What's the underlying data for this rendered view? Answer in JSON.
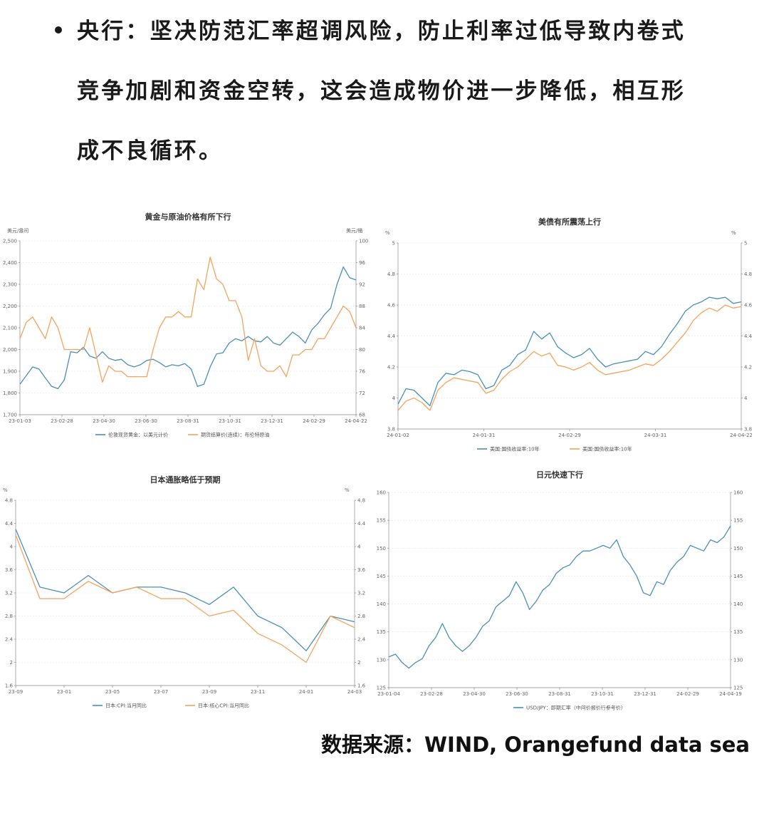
{
  "text": {
    "lines": [
      "央行：坚决防范汇率超调风险，防止利率过低导致内卷式",
      "竞争加剧和资金空转，这会造成物价进一步降低，相互形",
      "成不良循环。"
    ]
  },
  "source_note": "数据来源：WIND, Orangefund data sea",
  "colors": {
    "blue": "#4a90b8",
    "orange": "#f5a35c"
  },
  "chart_data": [
    {
      "type": "line",
      "title": "黄金与原油价格有所下行",
      "ylabel_left": "美元/盎司",
      "ylabel_right": "美元/桶",
      "ylim_left": [
        1700,
        2500
      ],
      "ylim_right": [
        68,
        100
      ],
      "yticks_left": [
        "1,700",
        "1,800",
        "1,900",
        "2,000",
        "2,100",
        "2,200",
        "2,300",
        "2,400",
        "2,500"
      ],
      "yticks_right": [
        "68",
        "72",
        "76",
        "80",
        "84",
        "88",
        "92",
        "96",
        "100"
      ],
      "x_labels": [
        "23-01-03",
        "23-02-28",
        "23-04-30",
        "23-06-30",
        "23-08-31",
        "23-10-31",
        "23-12-31",
        "24-02-29",
        "24-04-22"
      ],
      "grid": true,
      "legend": "bottom",
      "series": [
        {
          "name": "伦敦现货黄金：以美元计价",
          "axis": "left",
          "color": "#4a90b8",
          "values": [
            1840,
            1880,
            1920,
            1910,
            1870,
            1830,
            1820,
            1860,
            1990,
            1985,
            2010,
            1970,
            1960,
            1990,
            1960,
            1950,
            1955,
            1930,
            1920,
            1930,
            1950,
            1955,
            1940,
            1920,
            1930,
            1925,
            1935,
            1910,
            1830,
            1840,
            1920,
            1980,
            1985,
            2030,
            2050,
            2040,
            2060,
            2040,
            2035,
            2060,
            2030,
            2020,
            2050,
            2080,
            2060,
            2030,
            2090,
            2120,
            2160,
            2190,
            2300,
            2380,
            2330,
            2320
          ]
        },
        {
          "name": "期货结算价(连续)：布伦特原油",
          "axis": "right",
          "color": "#f5a35c",
          "values": [
            82,
            85,
            86,
            84,
            82,
            86,
            84,
            80,
            80,
            80,
            80,
            84,
            79,
            74,
            77,
            76,
            76,
            75,
            75,
            75,
            75,
            80,
            84,
            86,
            86,
            87,
            86,
            86,
            93,
            91,
            97,
            93,
            92,
            89,
            89,
            86,
            78,
            82,
            77,
            76,
            76,
            77,
            75,
            79,
            79,
            80,
            80,
            82,
            82,
            84,
            86,
            88,
            87,
            84
          ]
        }
      ]
    },
    {
      "type": "line",
      "title": "美债有所震荡上行",
      "ylabel_left": "%",
      "ylabel_right": "%",
      "ylim_left": [
        3.8,
        5
      ],
      "ylim_right": [
        3.8,
        5
      ],
      "yticks_left": [
        "3.8",
        "4",
        "4.2",
        "4.4",
        "4.6",
        "4.8",
        "5"
      ],
      "yticks_right": [
        "3.8",
        "4",
        "4.2",
        "4.4",
        "4.6",
        "4.8",
        "5"
      ],
      "x_labels": [
        "24-01-02",
        "24-01-31",
        "24-02-29",
        "24-03-31",
        "24-04-22"
      ],
      "grid": true,
      "legend": "bottom",
      "series": [
        {
          "name": "美国:国债收益率:10年",
          "axis": "left",
          "color": "#4a90b8",
          "values": [
            3.96,
            4.06,
            4.05,
            4.0,
            3.95,
            4.1,
            4.16,
            4.15,
            4.18,
            4.17,
            4.15,
            4.06,
            4.08,
            4.18,
            4.21,
            4.28,
            4.31,
            4.43,
            4.38,
            4.42,
            4.33,
            4.29,
            4.26,
            4.28,
            4.32,
            4.25,
            4.2,
            4.22,
            4.23,
            4.24,
            4.25,
            4.3,
            4.28,
            4.33,
            4.41,
            4.48,
            4.56,
            4.6,
            4.62,
            4.65,
            4.64,
            4.65,
            4.61,
            4.62
          ]
        },
        {
          "name": "美国:国债收益率:10年",
          "axis": "right",
          "color": "#f5a35c",
          "values": [
            3.92,
            3.98,
            4.0,
            3.97,
            3.92,
            4.05,
            4.1,
            4.13,
            4.12,
            4.11,
            4.1,
            4.03,
            4.05,
            4.12,
            4.17,
            4.2,
            4.25,
            4.3,
            4.27,
            4.29,
            4.21,
            4.2,
            4.18,
            4.2,
            4.23,
            4.18,
            4.15,
            4.16,
            4.17,
            4.18,
            4.2,
            4.22,
            4.21,
            4.25,
            4.3,
            4.36,
            4.42,
            4.5,
            4.55,
            4.58,
            4.56,
            4.6,
            4.58,
            4.59
          ]
        }
      ]
    },
    {
      "type": "line",
      "title": "日本通胀略低于预期",
      "ylabel_left": "%",
      "ylabel_right": "%",
      "ylim_left": [
        1.6,
        4.8
      ],
      "ylim_right": [
        1.6,
        4.8
      ],
      "yticks_left": [
        "1.6",
        "2",
        "2.4",
        "2.8",
        "3.2",
        "3.6",
        "4",
        "4.4",
        "4.8"
      ],
      "yticks_right": [
        "1.6",
        "2",
        "2.4",
        "2.8",
        "3.2",
        "3.6",
        "4",
        "4.4",
        "4.8"
      ],
      "x_labels": [
        "23-09",
        "23-01",
        "23-05",
        "23-07",
        "23-09",
        "23-11",
        "24-01",
        "24-03"
      ],
      "grid": true,
      "legend": "bottom",
      "series": [
        {
          "name": "日本:CPI:当月同比",
          "axis": "left",
          "color": "#4a90b8",
          "values": [
            4.3,
            3.3,
            3.2,
            3.5,
            3.2,
            3.3,
            3.3,
            3.2,
            3.0,
            3.3,
            2.8,
            2.6,
            2.2,
            2.8,
            2.7
          ]
        },
        {
          "name": "日本:核心CPI:当月同比",
          "axis": "left",
          "color": "#f5a35c",
          "values": [
            4.2,
            3.1,
            3.1,
            3.4,
            3.2,
            3.3,
            3.1,
            3.1,
            2.8,
            2.9,
            2.5,
            2.3,
            2.0,
            2.8,
            2.6
          ]
        }
      ]
    },
    {
      "type": "line",
      "title": "日元快速下行",
      "ylabel_left": "",
      "ylabel_right": "",
      "ylim_left": [
        125,
        160
      ],
      "ylim_right": [
        125,
        160
      ],
      "yticks_left": [
        "125",
        "130",
        "135",
        "140",
        "145",
        "150",
        "155",
        "160"
      ],
      "yticks_right": [
        "125",
        "130",
        "135",
        "140",
        "145",
        "150",
        "155",
        "160"
      ],
      "x_labels": [
        "23-01-04",
        "23-02-28",
        "23-04-30",
        "23-06-30",
        "23-08-31",
        "23-10-31",
        "23-12-31",
        "24-02-29",
        "24-04-19"
      ],
      "grid": true,
      "legend": "bottom",
      "series": [
        {
          "name": "USD/JPY：即期汇率（中间价报价行参考价）",
          "axis": "left",
          "color": "#4a90b8",
          "values": [
            130.5,
            131,
            129.5,
            128.5,
            129.5,
            130.2,
            132.5,
            134,
            136.5,
            134,
            132.5,
            131.5,
            132.5,
            134,
            136,
            137,
            139.5,
            140.5,
            141.5,
            144,
            142,
            139,
            140.5,
            142.5,
            143.5,
            145.5,
            146.5,
            147,
            148.5,
            149.5,
            149.5,
            150,
            150.5,
            150,
            151.5,
            148.5,
            147,
            145,
            142,
            141.5,
            144,
            143.5,
            146,
            147.5,
            148.5,
            150.5,
            150,
            149.5,
            151.5,
            151,
            152,
            154
          ]
        }
      ]
    }
  ]
}
